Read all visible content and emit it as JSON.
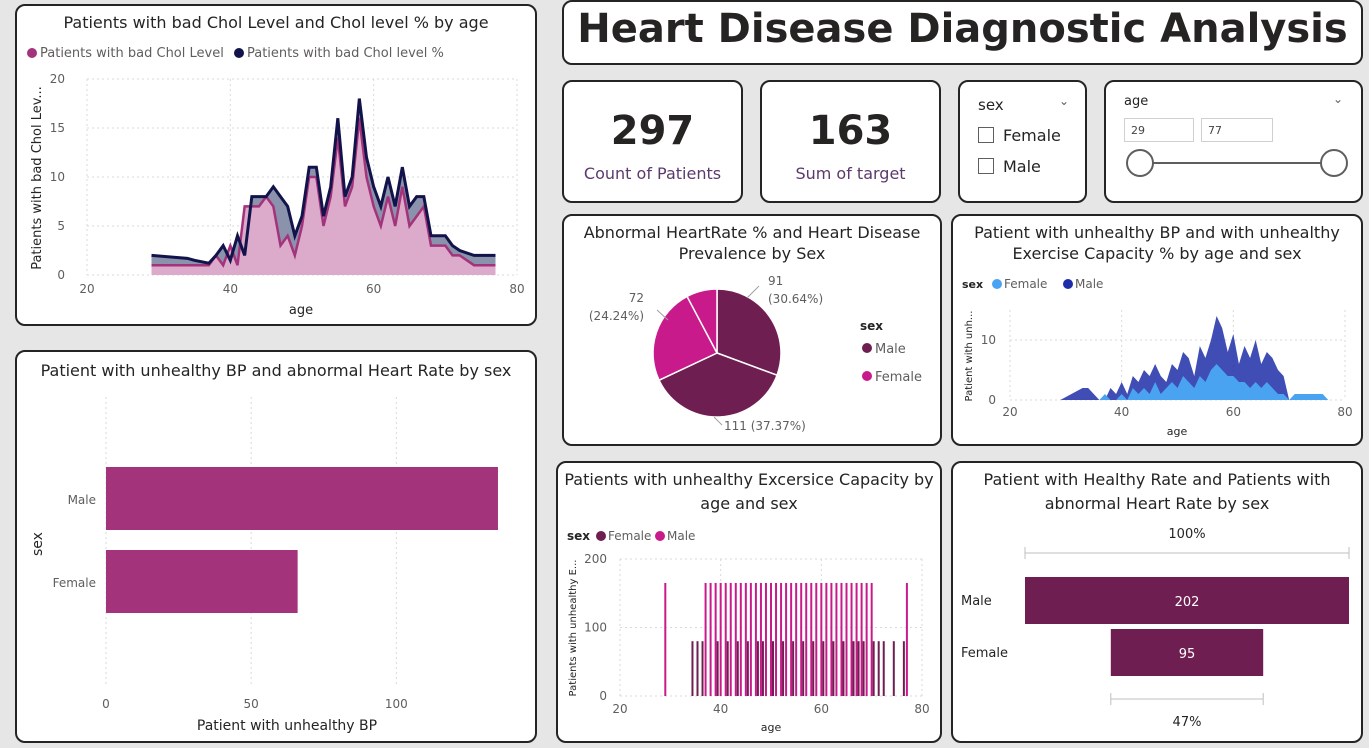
{
  "title": "Heart Disease Diagnostic Analysis",
  "colors": {
    "magenta": "#a3337a",
    "navy": "#12134a",
    "plum": "#6f1e51",
    "pink": "#c91a8b",
    "lightblue": "#4aa3f0",
    "darkblue": "#1f2ea8"
  },
  "cards": [
    {
      "value": "297",
      "label": "Count of Patients"
    },
    {
      "value": "163",
      "label": "Sum of target"
    }
  ],
  "sex_slicer": {
    "title": "sex",
    "options": [
      "Female",
      "Male"
    ]
  },
  "age_slicer": {
    "title": "age",
    "min": "29",
    "max": "77"
  },
  "chol_chart": {
    "title": "Patients with bad Chol Level and Chol level % by age",
    "legend": [
      "Patients with bad Chol Level",
      "Patients with bad Chol level %"
    ],
    "ylabel": "Patients with bad Chol Lev...",
    "xlabel": "age",
    "yticks": [
      "0",
      "5",
      "10",
      "15",
      "20"
    ],
    "xticks": [
      "20",
      "40",
      "60",
      "80"
    ]
  },
  "bp_hr_chart": {
    "title": "Patient with unhealthy BP and abnormal Heart Rate by sex",
    "ylabel": "sex",
    "xlabel": "Patient with unhealthy BP",
    "categories": [
      "Male",
      "Female"
    ],
    "xticks": [
      "0",
      "50",
      "100"
    ]
  },
  "pie_chart": {
    "title_line1": "Abnormal HeartRate % and Heart Disease",
    "title_line2": "Prevalence by Sex",
    "legend_title": "sex",
    "legend": [
      "Male",
      "Female"
    ],
    "labels": {
      "a1": "91",
      "a2": "(30.64%)",
      "b1": "72",
      "b2": "(24.24%)",
      "c": "111 (37.37%)"
    }
  },
  "exercise_pct_chart": {
    "title_line1": "Patient with unhealthy BP and with unhealthy",
    "title_line2": "Exercise Capacity % by age and sex",
    "legend_title": "sex",
    "legend": [
      "Female",
      "Male"
    ],
    "ylabel": "Patient with unh...",
    "xlabel": "age",
    "yticks": [
      "0",
      "10"
    ],
    "xticks": [
      "20",
      "40",
      "60",
      "80"
    ]
  },
  "exercise_chart": {
    "title_line1": "Patients with unhealthy Excersice Capacity by",
    "title_line2": "age and sex",
    "legend_title": "sex",
    "legend": [
      "Female",
      "Male"
    ],
    "ylabel": "Patients with unhealthy E...",
    "xlabel": "age",
    "yticks": [
      "0",
      "100",
      "200"
    ],
    "xticks": [
      "20",
      "40",
      "60",
      "80"
    ]
  },
  "funnel_chart": {
    "title_line1": "Patient with Healthy Rate and Patients with",
    "title_line2": "abnormal Heart Rate by sex",
    "top_label": "100%",
    "bottom_label": "47%",
    "categories": [
      "Male",
      "Female"
    ],
    "values": [
      "202",
      "95"
    ]
  },
  "chart_data": [
    {
      "type": "area",
      "title": "Patients with bad Chol Level and Chol level % by age",
      "xlabel": "age",
      "ylabel": "Patients with bad Chol Lev...",
      "xlim": [
        20,
        80
      ],
      "ylim": [
        0,
        20
      ],
      "x": [
        29,
        34,
        35,
        37,
        38,
        39,
        40,
        41,
        42,
        43,
        44,
        45,
        46,
        47,
        48,
        49,
        50,
        51,
        52,
        53,
        54,
        55,
        56,
        57,
        58,
        59,
        60,
        61,
        62,
        63,
        64,
        65,
        66,
        67,
        68,
        69,
        70,
        71,
        72,
        74,
        76,
        77
      ],
      "series": [
        {
          "name": "Patients with bad Chol Level",
          "values": [
            1,
            1,
            1,
            1,
            2,
            1,
            3,
            1,
            7,
            7,
            7,
            8,
            7,
            3,
            4,
            2,
            5,
            10,
            10,
            5,
            8,
            14,
            7,
            9,
            16,
            10,
            7,
            5,
            8,
            5,
            9,
            5,
            6,
            7,
            3,
            3,
            3,
            2,
            2,
            1,
            1,
            1
          ]
        },
        {
          "name": "Patients with bad Chol level %",
          "values": [
            2,
            1.7,
            1.5,
            1.2,
            2,
            3,
            1.5,
            4,
            2,
            8,
            8,
            8,
            9,
            8,
            7,
            4,
            6,
            11,
            11,
            6,
            9,
            16,
            8,
            10,
            18,
            12,
            9,
            7,
            10,
            7,
            11,
            7,
            8,
            8,
            4,
            4,
            4,
            3,
            2.5,
            2,
            2,
            2
          ]
        }
      ]
    },
    {
      "type": "bar",
      "title": "Patient with unhealthy BP and abnormal Heart Rate by sex",
      "categories": [
        "Male",
        "Female"
      ],
      "values": [
        135,
        66
      ],
      "xlabel": "Patient with unhealthy BP",
      "ylabel": "sex",
      "xlim": [
        0,
        145
      ]
    },
    {
      "type": "pie",
      "title": "Abnormal HeartRate % and Heart Disease Prevalence by Sex",
      "slices": [
        {
          "value": 91,
          "pct": 30.64
        },
        {
          "value": 111,
          "pct": 37.37
        },
        {
          "value": 72,
          "pct": 24.24
        },
        {
          "value": 23,
          "pct": 7.74
        }
      ]
    },
    {
      "type": "area",
      "title": "Patient with unhealthy BP and with unhealthy Exercise Capacity % by age and sex",
      "xlabel": "age",
      "xlim": [
        20,
        80
      ],
      "ylim": [
        0,
        15
      ],
      "x": [
        29,
        31,
        33,
        34,
        35,
        36,
        37,
        38,
        39,
        40,
        41,
        42,
        43,
        44,
        45,
        46,
        47,
        48,
        49,
        50,
        51,
        52,
        53,
        54,
        55,
        56,
        57,
        58,
        59,
        60,
        61,
        62,
        63,
        64,
        65,
        66,
        67,
        68,
        69,
        70,
        71,
        72,
        74,
        76,
        77
      ],
      "series": [
        {
          "name": "Male",
          "values": [
            0,
            1,
            2,
            2,
            1,
            0,
            0,
            2,
            1,
            3,
            1,
            4,
            3,
            5,
            4,
            6,
            4,
            3,
            6,
            5,
            8,
            7,
            4,
            9,
            7,
            10,
            14,
            12,
            8,
            11,
            6,
            9,
            7,
            10,
            6,
            8,
            7,
            5,
            4,
            0,
            0,
            0,
            0,
            0,
            0
          ]
        },
        {
          "name": "Female",
          "values": [
            0,
            0,
            0,
            0,
            0,
            0,
            1,
            0,
            0,
            1,
            0,
            2,
            1,
            2,
            1,
            3,
            1,
            2,
            3,
            2,
            4,
            3,
            2,
            4,
            3,
            5,
            6,
            5,
            4,
            4,
            3,
            3,
            2,
            3,
            2,
            3,
            2,
            1,
            1,
            0,
            1,
            1,
            1,
            1,
            0
          ]
        }
      ]
    },
    {
      "type": "bar",
      "title": "Patients with unhealthy Excersice Capacity by age and sex",
      "xlabel": "age",
      "ylim": [
        0,
        200
      ],
      "xlim": [
        20,
        80
      ],
      "series": [
        {
          "name": "Female",
          "x": [
            29,
            37,
            38,
            39,
            40,
            41,
            42,
            43,
            44,
            45,
            46,
            47,
            48,
            49,
            50,
            51,
            52,
            53,
            54,
            55,
            56,
            57,
            58,
            59,
            60,
            61,
            62,
            63,
            64,
            65,
            66,
            67,
            68,
            69,
            70,
            77
          ],
          "values": [
            165,
            165,
            165,
            165,
            165,
            165,
            165,
            165,
            165,
            165,
            165,
            165,
            165,
            165,
            165,
            165,
            165,
            165,
            165,
            165,
            165,
            165,
            165,
            165,
            165,
            165,
            165,
            165,
            165,
            165,
            165,
            165,
            165,
            165,
            165,
            165
          ]
        },
        {
          "name": "Male",
          "x": [
            34,
            35,
            36,
            39,
            41,
            43,
            45,
            47,
            48,
            50,
            52,
            54,
            56,
            58,
            60,
            62,
            64,
            66,
            67,
            68,
            70,
            71,
            72,
            74,
            76
          ],
          "values": [
            80,
            80,
            80,
            80,
            80,
            80,
            80,
            80,
            80,
            80,
            80,
            80,
            80,
            80,
            80,
            80,
            80,
            80,
            80,
            80,
            80,
            80,
            80,
            80,
            80
          ]
        }
      ]
    },
    {
      "type": "bar",
      "title": "Patient with Healthy Rate and Patients with abnormal Heart Rate by sex",
      "categories": [
        "Male",
        "Female"
      ],
      "values": [
        202,
        95
      ]
    }
  ]
}
